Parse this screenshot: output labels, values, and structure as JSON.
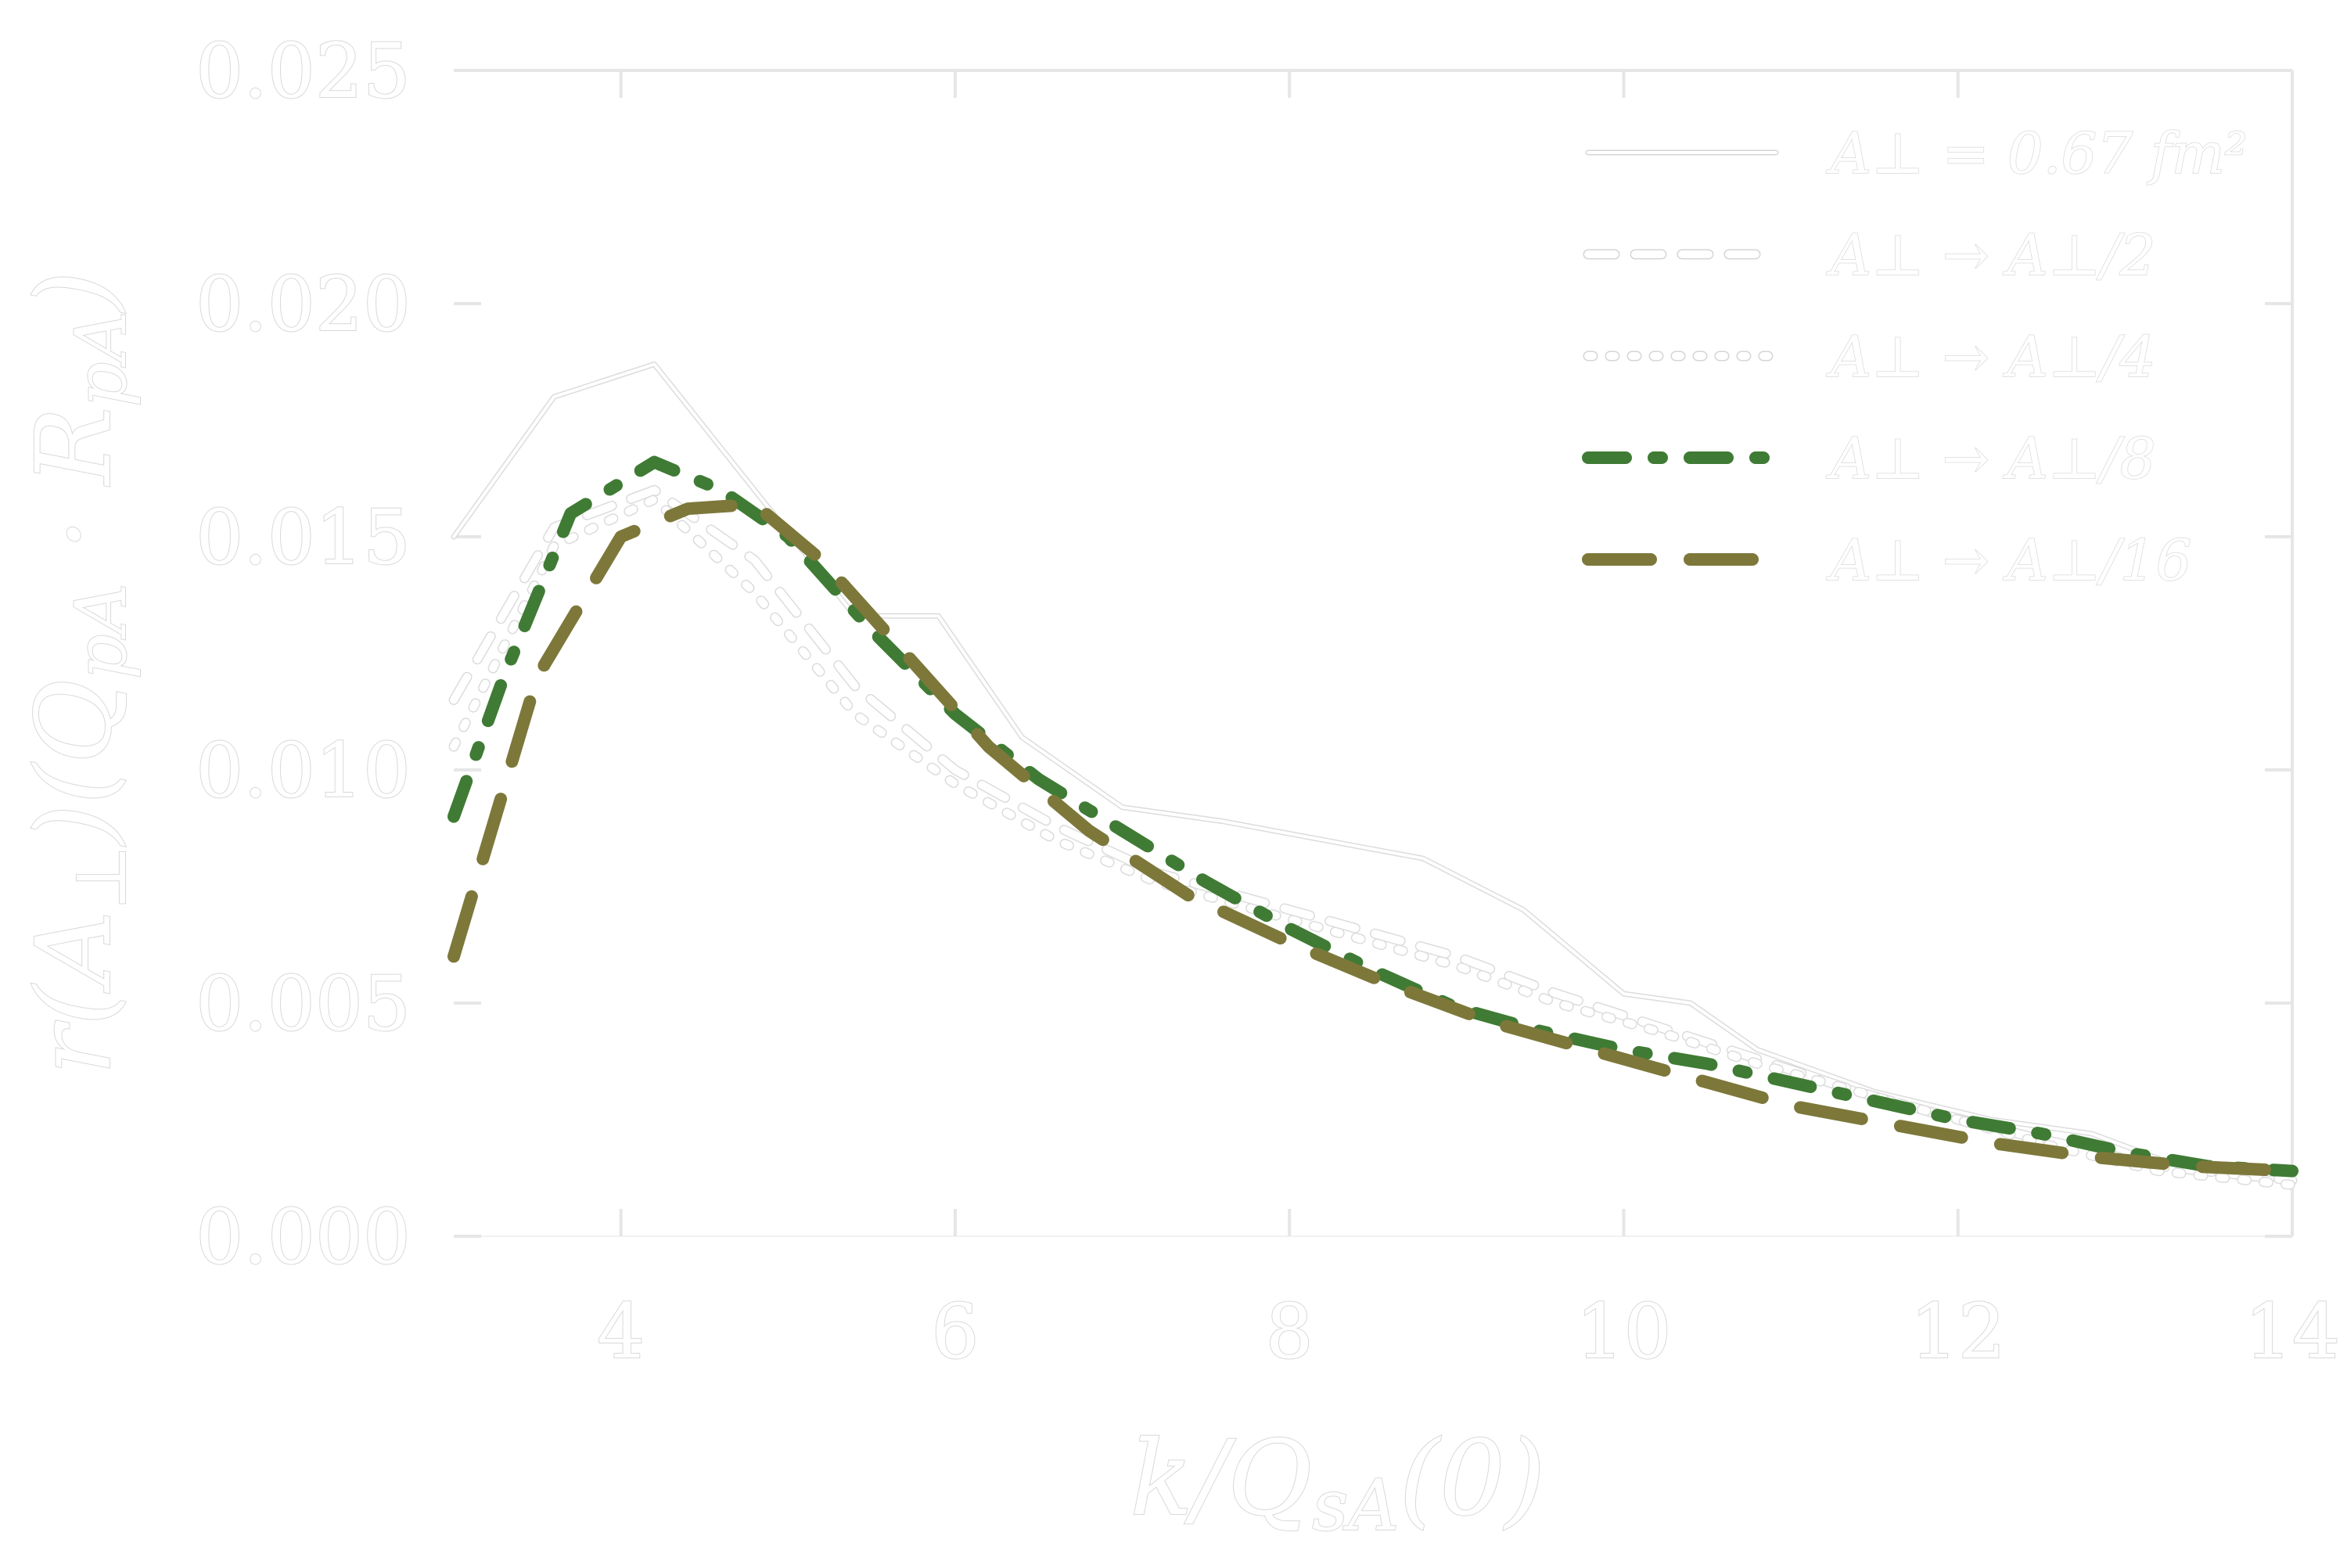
{
  "chart_data": {
    "type": "line",
    "title": "",
    "xlabel": "k/Q_sA(0)",
    "ylabel": "r(A_⊥)(Q_pA · R_pA)",
    "xlim": [
      3,
      14
    ],
    "ylim": [
      0.0,
      0.025
    ],
    "xticks": [
      4,
      6,
      8,
      10,
      12,
      14
    ],
    "yticks": [
      0.0,
      0.005,
      0.01,
      0.015,
      0.02,
      0.025
    ],
    "xtick_labels": [
      "4",
      "6",
      "8",
      "10",
      "12",
      "14"
    ],
    "ytick_labels": [
      "0.000",
      "0.005",
      "0.010",
      "0.015",
      "0.020",
      "0.025"
    ],
    "grid": false,
    "legend": "top-right",
    "series": [
      {
        "name": "A_⊥ = 0.67 fm²",
        "color": "#f2f2f2",
        "dash": "solid",
        "x": [
          3.0,
          3.6,
          4.2,
          4.8,
          5.4,
          5.9,
          6.4,
          7.0,
          7.6,
          8.2,
          8.8,
          9.4,
          10.0,
          10.4,
          10.8,
          11.5,
          12.2,
          12.8,
          13.4,
          14.0
        ],
        "y": [
          0.015,
          0.018,
          0.0187,
          0.016,
          0.0133,
          0.0133,
          0.0107,
          0.0092,
          0.0089,
          0.0085,
          0.0081,
          0.007,
          0.0052,
          0.005,
          0.004,
          0.0031,
          0.0025,
          0.0022,
          0.0014,
          0.0012
        ]
      },
      {
        "name": "A_⊥ → A_⊥/2",
        "color": "#f2f2f2",
        "dash": "dashed",
        "x": [
          3.0,
          3.6,
          4.2,
          4.8,
          5.4,
          6.0,
          6.6,
          7.2,
          7.8,
          8.4,
          9.0,
          9.6,
          10.2,
          10.8,
          11.4,
          12.0,
          12.6,
          13.2,
          14.0
        ],
        "y": [
          0.0115,
          0.0152,
          0.016,
          0.0145,
          0.0118,
          0.01,
          0.0088,
          0.0078,
          0.0072,
          0.0066,
          0.006,
          0.0052,
          0.0045,
          0.0038,
          0.0031,
          0.0025,
          0.002,
          0.0015,
          0.0012
        ]
      },
      {
        "name": "A_⊥ → A_⊥/4",
        "color": "#f2f2f2",
        "dash": "dotted",
        "x": [
          3.0,
          3.6,
          4.2,
          4.8,
          5.4,
          6.0,
          6.6,
          7.2,
          7.8,
          8.4,
          9.0,
          9.6,
          10.2,
          10.8,
          11.4,
          12.0,
          12.6,
          13.2,
          14.0
        ],
        "y": [
          0.0105,
          0.0148,
          0.0158,
          0.0138,
          0.0112,
          0.0097,
          0.0085,
          0.0076,
          0.007,
          0.0064,
          0.0058,
          0.005,
          0.0044,
          0.0037,
          0.0031,
          0.0025,
          0.0019,
          0.0014,
          0.0011
        ]
      },
      {
        "name": "A_⊥ → A_⊥/8",
        "color": "#3f7b34",
        "dash": "dashdot",
        "x": [
          3.0,
          3.3,
          3.7,
          4.2,
          4.6,
          5.0,
          5.5,
          6.0,
          6.5,
          7.0,
          7.5,
          8.0,
          8.5,
          9.0,
          9.5,
          10.0,
          10.5,
          11.0,
          11.5,
          12.0,
          12.5,
          13.0,
          13.5,
          14.0
        ],
        "y": [
          0.009,
          0.012,
          0.0155,
          0.0166,
          0.016,
          0.015,
          0.013,
          0.0112,
          0.0098,
          0.0087,
          0.0076,
          0.0066,
          0.0057,
          0.0049,
          0.0044,
          0.004,
          0.0037,
          0.0033,
          0.0029,
          0.0025,
          0.0022,
          0.0018,
          0.0015,
          0.0014
        ]
      },
      {
        "name": "A_⊥ → A_⊥/16",
        "color": "#7d783a",
        "dash": "longdash",
        "x": [
          3.0,
          3.5,
          4.0,
          4.4,
          4.8,
          5.2,
          5.7,
          6.2,
          6.8,
          7.4,
          8.0,
          8.6,
          9.2,
          9.8,
          10.4,
          11.0,
          11.6,
          12.2,
          12.8,
          13.4,
          14.0
        ],
        "y": [
          0.006,
          0.012,
          0.015,
          0.0156,
          0.0157,
          0.0145,
          0.0125,
          0.0105,
          0.0087,
          0.0073,
          0.0063,
          0.0054,
          0.0046,
          0.004,
          0.0034,
          0.0028,
          0.0024,
          0.002,
          0.0017,
          0.0015,
          0.0014
        ]
      }
    ]
  },
  "legend_entries": [
    {
      "label": "A⊥ = 0.67 fm²"
    },
    {
      "label": "A⊥ → A⊥/2"
    },
    {
      "label": "A⊥ → A⊥/4"
    },
    {
      "label": "A⊥ → A⊥/8"
    },
    {
      "label": "A⊥ → A⊥/16"
    }
  ],
  "axis_text": {
    "x": "k/Q",
    "x_sub": "sA",
    "x_tail": "(0)",
    "y": "r(A",
    "y_sub1": "⊥",
    "y_mid": ")(Q",
    "y_sub2": "pA",
    "y_dot": " · ",
    "y_tail": "R",
    "y_sub3": "pA",
    "y_close": ")"
  }
}
